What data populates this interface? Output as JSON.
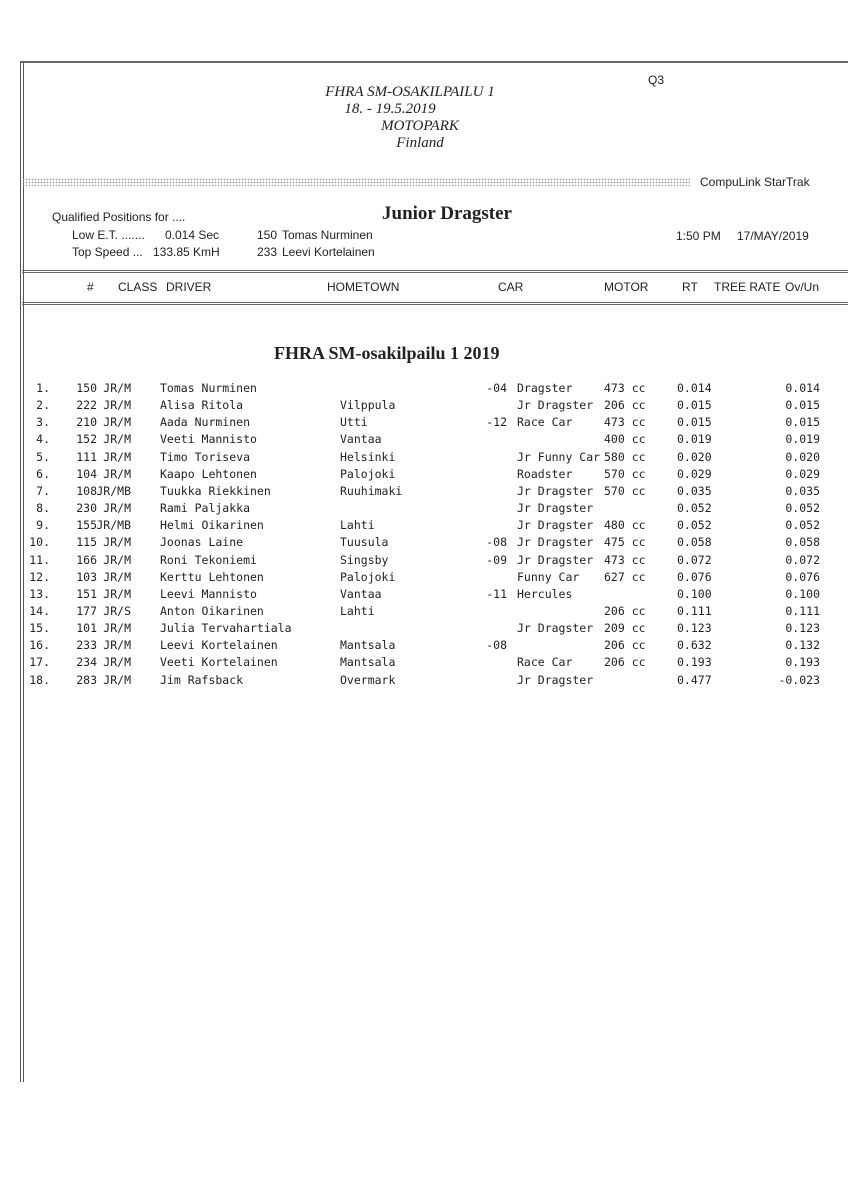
{
  "event": {
    "name": "FHRA SM-OSAKILPAILU 1",
    "dates": "18. - 19.5.2019",
    "venue": "MOTOPARK",
    "country": "Finland",
    "session": "Q3"
  },
  "system": "CompuLink  StarTrak",
  "qualified_label": "Qualified Positions for ....",
  "class_title": "Junior Dragster",
  "low_et": {
    "label": "Low E.T. .......",
    "value": "0.014  Sec",
    "number": "150",
    "driver": "Tomas Nurminen"
  },
  "top_speed": {
    "label": "Top Speed ...",
    "value": "133.85  KmH",
    "number": "233",
    "driver": "Leevi Kortelainen"
  },
  "time": "1:50 PM",
  "date": "17/MAY/2019",
  "columns": {
    "num": "#",
    "class": "CLASS",
    "driver": "DRIVER",
    "hometown": "HOMETOWN",
    "car": "CAR",
    "motor": "MOTOR",
    "rt": "RT",
    "tree": "TREE RATE",
    "ovun": "Ov/Un"
  },
  "section_title": "FHRA SM-osakilpailu 1 2019",
  "rows": [
    {
      "pos": "1.",
      "num": "150",
      "class": "JR/M",
      "driver": "Tomas Nurminen",
      "hometown": "",
      "carnum": "-04",
      "car": "Dragster",
      "motor": "473 cc",
      "rt": "0.014",
      "ovun": "0.014"
    },
    {
      "pos": "2.",
      "num": "222",
      "class": "JR/M",
      "driver": "Alisa Ritola",
      "hometown": "Vilppula",
      "carnum": "",
      "car": "Jr Dragster",
      "motor": "206 cc",
      "rt": "0.015",
      "ovun": "0.015"
    },
    {
      "pos": "3.",
      "num": "210",
      "class": "JR/M",
      "driver": "Aada Nurminen",
      "hometown": "Utti",
      "carnum": "-12",
      "car": "Race Car",
      "motor": "473 cc",
      "rt": "0.015",
      "ovun": "0.015"
    },
    {
      "pos": "4.",
      "num": "152",
      "class": "JR/M",
      "driver": "Veeti Mannisto",
      "hometown": "Vantaa",
      "carnum": "",
      "car": "",
      "motor": "400 cc",
      "rt": "0.019",
      "ovun": "0.019"
    },
    {
      "pos": "5.",
      "num": "111",
      "class": "JR/M",
      "driver": "Timo Toriseva",
      "hometown": "Helsinki",
      "carnum": "",
      "car": "Jr Funny Car",
      "motor": "580 cc",
      "rt": "0.020",
      "ovun": "0.020"
    },
    {
      "pos": "6.",
      "num": "104",
      "class": "JR/M",
      "driver": "Kaapo Lehtonen",
      "hometown": "Palojoki",
      "carnum": "",
      "car": "Roadster",
      "motor": "570 cc",
      "rt": "0.029",
      "ovun": "0.029"
    },
    {
      "pos": "7.",
      "num": "108",
      "class": "JR/MB",
      "driver": "Tuukka Riekkinen",
      "hometown": "Ruuhimaki",
      "carnum": "",
      "car": "Jr Dragster",
      "motor": "570 cc",
      "rt": "0.035",
      "ovun": "0.035"
    },
    {
      "pos": "8.",
      "num": "230",
      "class": "JR/M",
      "driver": "Rami Paljakka",
      "hometown": "",
      "carnum": "",
      "car": "Jr Dragster",
      "motor": "",
      "rt": "0.052",
      "ovun": "0.052"
    },
    {
      "pos": "9.",
      "num": "155",
      "class": "JR/MB",
      "driver": "Helmi Oikarinen",
      "hometown": "Lahti",
      "carnum": "",
      "car": "Jr Dragster",
      "motor": "480 cc",
      "rt": "0.052",
      "ovun": "0.052"
    },
    {
      "pos": "10.",
      "num": "115",
      "class": "JR/M",
      "driver": "Joonas Laine",
      "hometown": "Tuusula",
      "carnum": "-08",
      "car": "Jr Dragster",
      "motor": "475 cc",
      "rt": "0.058",
      "ovun": "0.058"
    },
    {
      "pos": "11.",
      "num": "166",
      "class": "JR/M",
      "driver": "Roni Tekoniemi",
      "hometown": "Singsby",
      "carnum": "-09",
      "car": "Jr Dragster",
      "motor": "473 cc",
      "rt": "0.072",
      "ovun": "0.072"
    },
    {
      "pos": "12.",
      "num": "103",
      "class": "JR/M",
      "driver": "Kerttu Lehtonen",
      "hometown": "Palojoki",
      "carnum": "",
      "car": "Funny Car",
      "motor": "627 cc",
      "rt": "0.076",
      "ovun": "0.076"
    },
    {
      "pos": "13.",
      "num": "151",
      "class": "JR/M",
      "driver": "Leevi Mannisto",
      "hometown": "Vantaa",
      "carnum": "-11",
      "car": "Hercules",
      "motor": "",
      "rt": "0.100",
      "ovun": "0.100"
    },
    {
      "pos": "14.",
      "num": "177",
      "class": "JR/S",
      "driver": "Anton Oikarinen",
      "hometown": "Lahti",
      "carnum": "",
      "car": "",
      "motor": "206 cc",
      "rt": "0.111",
      "ovun": "0.111"
    },
    {
      "pos": "15.",
      "num": "101",
      "class": "JR/M",
      "driver": "Julia Tervahartiala",
      "hometown": "",
      "carnum": "",
      "car": "Jr Dragster",
      "motor": "209 cc",
      "rt": "0.123",
      "ovun": "0.123"
    },
    {
      "pos": "16.",
      "num": "233",
      "class": "JR/M",
      "driver": "Leevi Kortelainen",
      "hometown": "Mantsala",
      "carnum": "-08",
      "car": "",
      "motor": "206 cc",
      "rt": "0.632",
      "ovun": "0.132"
    },
    {
      "pos": "17.",
      "num": "234",
      "class": "JR/M",
      "driver": "Veeti Kortelainen",
      "hometown": "Mantsala",
      "carnum": "",
      "car": "Race Car",
      "motor": "206 cc",
      "rt": "0.193",
      "ovun": "0.193"
    },
    {
      "pos": "18.",
      "num": "283",
      "class": "JR/M",
      "driver": "Jim Rafsback",
      "hometown": "Overmark",
      "carnum": "",
      "car": "Jr Dragster",
      "motor": "",
      "rt": "0.477",
      "ovun": "-0.023"
    }
  ]
}
